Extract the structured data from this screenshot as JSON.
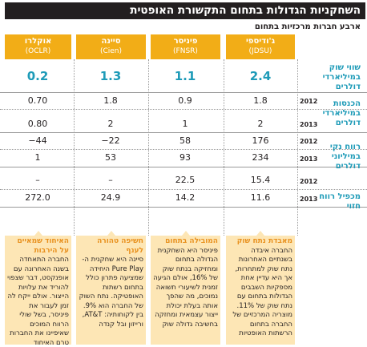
{
  "title": "השחקניות הגדולות בתחום התקשורת האופטית",
  "subtitle": "ארבע חברות מרכזיות בתחום",
  "columns": [
    {
      "he": "ג'ודיספי",
      "en": "(JDSU)"
    },
    {
      "he": "פיניסר",
      "en": "(FNSR)"
    },
    {
      "he": "סיינה",
      "en": "(Cien)"
    },
    {
      "he": "אוקלרו",
      "en": "(OCLR)"
    }
  ],
  "row_labels": {
    "market_cap": "שווי שוק במיליארדי דולרים",
    "revenue": "הכנסות במיליארדי דולרים",
    "net_profit": "רווח נקי במיליוני דולרים",
    "pe": "מכפיל רווח חזוי"
  },
  "years": {
    "y2012": "2012",
    "y2013": "2013"
  },
  "chart_data": {
    "type": "table",
    "title": "השחקניות הגדולות בתחום התקשורת האופטית",
    "subtitle": "ארבע חברות מרכזיות בתחום",
    "companies": [
      "ג'ודיספי (JDSU)",
      "פיניסר (FNSR)",
      "סיינה (Cien)",
      "אוקלרו (OCLR)"
    ],
    "market_cap": [
      "2.4",
      "1.1",
      "1.3",
      "0.2"
    ],
    "revenue_2012": [
      "1.8",
      "0.9",
      "1.8",
      "0.70"
    ],
    "revenue_2013": [
      "2",
      "1",
      "2",
      "0.80"
    ],
    "net_profit_2012": [
      "176",
      "58",
      "−22",
      "−44"
    ],
    "net_profit_2013": [
      "234",
      "93",
      "53",
      "1"
    ],
    "pe_2012": [
      "15.4",
      "22.5",
      "–",
      "–"
    ],
    "pe_2013": [
      "11.6",
      "14.2",
      "24.9",
      "272.0"
    ]
  },
  "notes": [
    {
      "heading": "מאבדת נתח שוק",
      "body": "החברה איבדה בשנתיים האחרונות נתח שוק למתחרות, אך היא עדיין אחת מספקיות השבבים הגדולות בתחום עם נתח שוק של 11%. מוצריה המרכזיים של החברה בתחום הרשתות האופטיות"
    },
    {
      "heading": "המובילה בתחום",
      "body": "פיניסר היא השחקנית הגדולה בתחום ומחזיקה בנתח שוק של 16%, אולם הגיעה זמנית לשיעורי תשואה נמוכים, מה שהפך אותה בעלת יכולת ייצור עצמאית ומחזקה בחשיבה גדולה שוק"
    },
    {
      "heading": "חשיפה טהורה לענף",
      "body": "סיינה היא שחקנית ה-Pure Play היחידה שמציעה פתרון כולל בתחום רשתות האופטיקה. נתח השוק של החברה הוא 9%. בין לקוחותיה: AT&T, ורייזון ובל קנדה"
    },
    {
      "heading": "האיחוד שמאיים על הירבות",
      "body": "החברה התאחדה בשנה האחרונה עם אופנקסט, דבר שצפוי להוריד את עלויות הייצור. אולם ייקח לה זמן לעבור את פיניסר, בשל שולי הרווח המוכים שאיפיינו את החברות טרם האיחוד"
    }
  ]
}
